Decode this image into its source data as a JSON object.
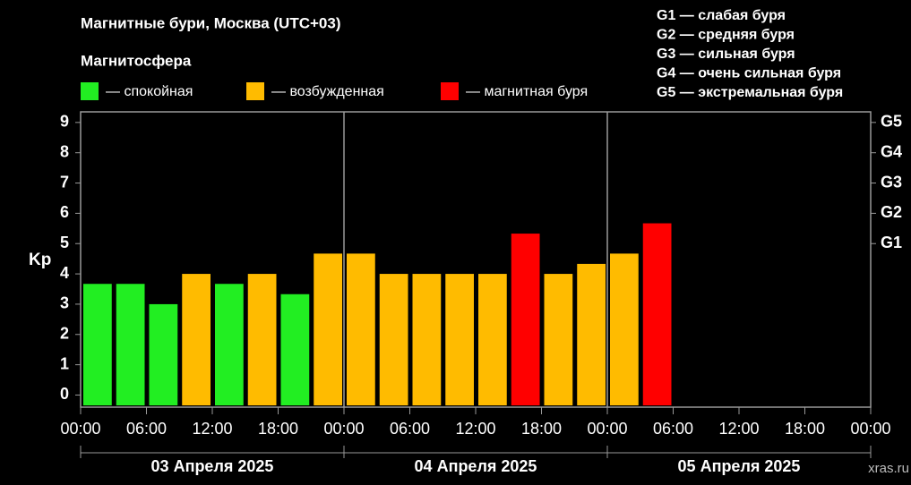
{
  "chart_data": {
    "type": "bar",
    "title": "Магнитные бури, Москва (UTC+03)",
    "legend_title": "Магнитосфера",
    "legend": [
      {
        "name": "— спокойная",
        "color": "#22ee22"
      },
      {
        "name": "— возбужденная",
        "color": "#ffbb00"
      },
      {
        "name": "— магнитная буря",
        "color": "#ff0000"
      }
    ],
    "storm_scale": [
      "G1 — слабая буря",
      "G2 — средняя буря",
      "G3 — сильная буря",
      "G4 — очень сильная буря",
      "G5 — экстремальная буря"
    ],
    "y_label": "Kp",
    "x": [
      0,
      3,
      6,
      9,
      12,
      15,
      18,
      21,
      24,
      27,
      30,
      33,
      36,
      39,
      42,
      45,
      48,
      51
    ],
    "values": [
      3.67,
      3.67,
      3,
      4,
      3.67,
      4,
      3.33,
      4.67,
      4.67,
      4,
      4,
      4,
      4,
      5.33,
      4,
      4.33,
      4.67,
      5.67
    ],
    "colors": [
      "#22ee22",
      "#22ee22",
      "#22ee22",
      "#ffbb00",
      "#22ee22",
      "#ffbb00",
      "#22ee22",
      "#ffbb00",
      "#ffbb00",
      "#ffbb00",
      "#ffbb00",
      "#ffbb00",
      "#ffbb00",
      "#ff0000",
      "#ffbb00",
      "#ffbb00",
      "#ffbb00",
      "#ff0000"
    ],
    "bar_width": 3,
    "xlim": [
      0,
      72
    ],
    "xticks": [
      {
        "value": 0,
        "label": "00:00"
      },
      {
        "value": 6,
        "label": "06:00"
      },
      {
        "value": 12,
        "label": "12:00"
      },
      {
        "value": 18,
        "label": "18:00"
      },
      {
        "value": 24,
        "label": "00:00"
      },
      {
        "value": 30,
        "label": "06:00"
      },
      {
        "value": 36,
        "label": "12:00"
      },
      {
        "value": 42,
        "label": "18:00"
      },
      {
        "value": 48,
        "label": "00:00"
      },
      {
        "value": 54,
        "label": "06:00"
      },
      {
        "value": 60,
        "label": "12:00"
      },
      {
        "value": 66,
        "label": "18:00"
      },
      {
        "value": 72,
        "label": "00:00"
      }
    ],
    "ylim": [
      -0.4,
      9.35
    ],
    "yticks": [
      0,
      1,
      2,
      3,
      4,
      5,
      6,
      7,
      8,
      9
    ],
    "y2lim": [
      -0.4,
      9.35
    ],
    "y2ticks": [
      {
        "value": 5,
        "label": "G1"
      },
      {
        "value": 6,
        "label": "G2"
      },
      {
        "value": 7,
        "label": "G3"
      },
      {
        "value": 8,
        "label": "G4"
      },
      {
        "value": 9,
        "label": "G5"
      }
    ],
    "days": [
      {
        "label": "03 Апреля 2025",
        "start": 0,
        "end": 24
      },
      {
        "label": "04 Апреля 2025",
        "start": 24,
        "end": 48
      },
      {
        "label": "05 Апреля 2025",
        "start": 48,
        "end": 72
      }
    ],
    "watermark": "xras.ru"
  }
}
